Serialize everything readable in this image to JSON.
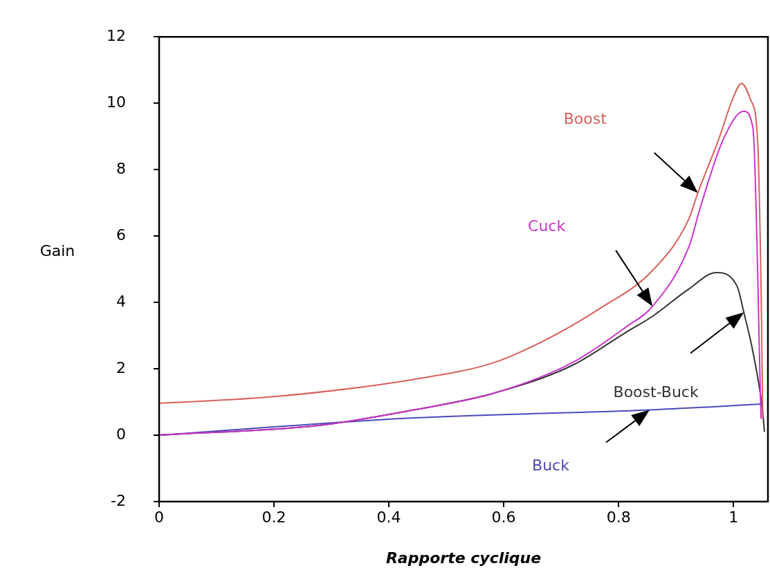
{
  "chart_data": {
    "type": "line",
    "xlabel": "Rapporte cyclique",
    "ylabel": "Gain",
    "xlim": [
      0,
      1.06
    ],
    "xticks": [
      0,
      0.2,
      0.4,
      0.6,
      0.8,
      1
    ],
    "ylim": [
      -2,
      12
    ],
    "yticks": [
      -2,
      0,
      2,
      4,
      6,
      8,
      10,
      12
    ],
    "grid": false,
    "legend": false,
    "marker": "none",
    "line_style": "solid",
    "series": [
      {
        "name": "Boost",
        "color": "#d9605a",
        "x": [
          0,
          0.2,
          0.443,
          0.582,
          0.674,
          0.766,
          0.859,
          0.922,
          0.938,
          0.974,
          0.998,
          1.014,
          1.03,
          1.042,
          1.048,
          1.051
        ],
        "values": [
          0.96,
          1.16,
          1.68,
          2.18,
          2.88,
          3.8,
          4.96,
          6.5,
          7.3,
          8.9,
          10.1,
          10.6,
          10.1,
          8.9,
          4.5,
          0.5
        ]
      },
      {
        "name": "Cuck",
        "color": "#cc33cc",
        "x": [
          0,
          0.28,
          0.443,
          0.582,
          0.719,
          0.813,
          0.859,
          0.922,
          0.943,
          0.982,
          1.018,
          1.034,
          1.048
        ],
        "values": [
          0,
          0.3,
          0.76,
          1.26,
          2.18,
          3.26,
          3.88,
          5.66,
          6.9,
          8.9,
          9.76,
          9.24,
          0.5
        ]
      },
      {
        "name": "Boost-Buck",
        "color": "#333333",
        "x": [
          0,
          0.28,
          0.443,
          0.582,
          0.719,
          0.813,
          0.859,
          0.922,
          0.97,
          1.006,
          1.018,
          1.034,
          1.05,
          1.054
        ],
        "values": [
          0,
          0.3,
          0.76,
          1.26,
          2.1,
          3.1,
          3.58,
          4.4,
          4.9,
          4.5,
          3.7,
          2.5,
          0.84,
          0.1
        ]
      },
      {
        "name": "Buck",
        "color": "#4a4ab8",
        "x": [
          0,
          0.443,
          0.854,
          1.05
        ],
        "values": [
          0,
          0.52,
          0.76,
          0.94
        ]
      }
    ]
  }
}
